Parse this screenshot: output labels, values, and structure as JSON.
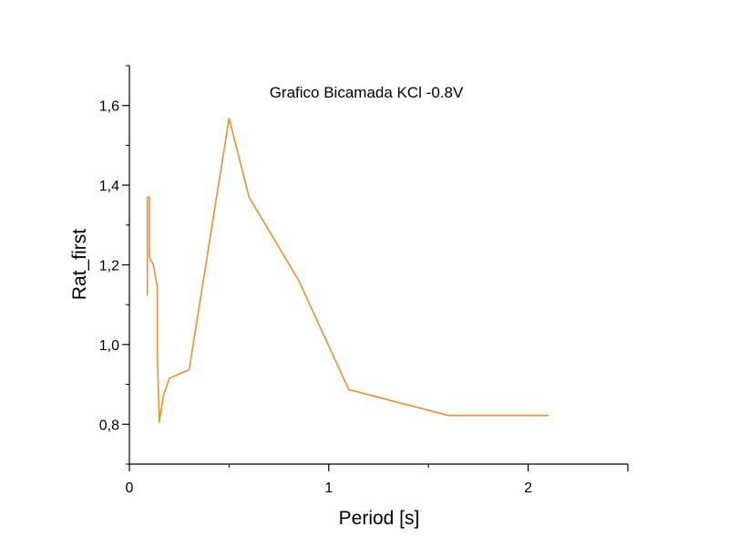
{
  "chart_data": {
    "type": "line",
    "title": "Grafico Bicamada KCl -0.8V",
    "xlabel": "Period [s]",
    "ylabel": "Rat_first",
    "xlim": [
      0,
      2.5
    ],
    "ylim": [
      0.7,
      1.7
    ],
    "x_ticks": [
      0,
      1,
      2
    ],
    "x_tick_labels": [
      "0",
      "1",
      "2"
    ],
    "y_ticks": [
      0.8,
      1.0,
      1.2,
      1.4,
      1.6
    ],
    "y_tick_labels": [
      "0,8",
      "1,0",
      "1,2",
      "1,4",
      "1,6"
    ],
    "grid": false,
    "legend": "none",
    "series": [
      {
        "color": "#F28E2B",
        "x": [
          0.09,
          0.09,
          0.1,
          0.1,
          0.12,
          0.14,
          0.14,
          0.15,
          0.15,
          0.17,
          0.2,
          0.3,
          0.5,
          0.6,
          0.85,
          1.1,
          1.6,
          2.1
        ],
        "y": [
          1.125,
          1.37,
          1.37,
          1.22,
          1.2,
          1.145,
          0.98,
          0.805,
          0.805,
          0.87,
          0.915,
          0.937,
          1.568,
          1.37,
          1.16,
          0.887,
          0.822,
          0.822
        ]
      }
    ]
  }
}
